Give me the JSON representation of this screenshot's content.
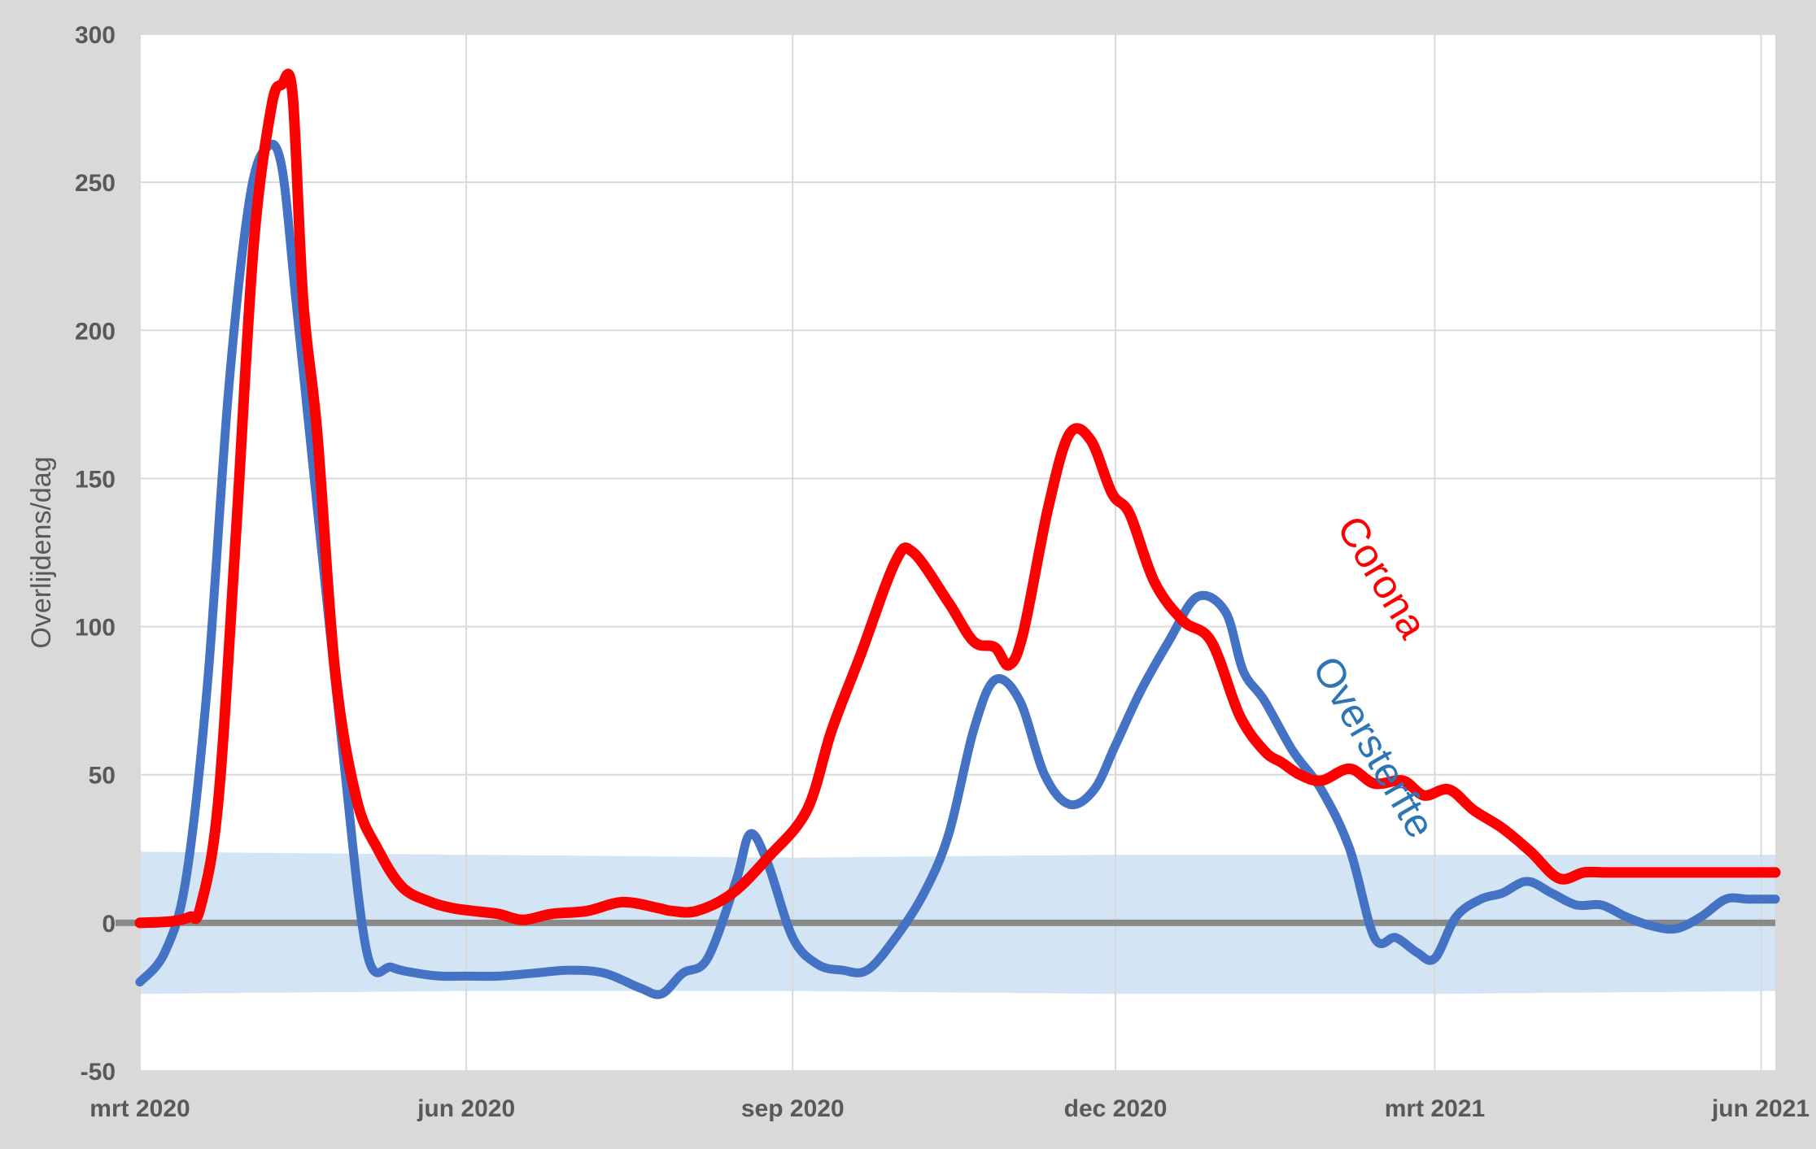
{
  "chart_data": {
    "type": "line",
    "ylabel": "Overlijdens/dag",
    "xlabel": "",
    "ylim": [
      -50,
      300
    ],
    "yticks": [
      300,
      250,
      200,
      150,
      100,
      50,
      0,
      -50
    ],
    "x_domain": [
      "2020-03-01",
      "2021-06-05"
    ],
    "xticks": [
      {
        "label": "mrt 2020",
        "date": "2020-03-01"
      },
      {
        "label": "jun 2020",
        "date": "2020-06-01"
      },
      {
        "label": "sep 2020",
        "date": "2020-09-01"
      },
      {
        "label": "dec 2020",
        "date": "2020-12-01"
      },
      {
        "label": "mrt 2021",
        "date": "2021-03-01"
      },
      {
        "label": "jun 2021",
        "date": "2021-06-01"
      }
    ],
    "grid": true,
    "band": {
      "color": "#d3e5f4",
      "x": [
        "2020-03-01",
        "2020-06-01",
        "2020-09-01",
        "2020-12-01",
        "2021-03-01",
        "2021-06-05"
      ],
      "upper": [
        24,
        23,
        22,
        23,
        23,
        23
      ],
      "lower": [
        -24,
        -23,
        -23,
        -24,
        -24,
        -23
      ]
    },
    "series": [
      {
        "name": "Corona",
        "color": "#ff0000",
        "x": [
          "2020-03-01",
          "2020-03-10",
          "2020-03-15",
          "2020-03-18",
          "2020-03-23",
          "2020-03-28",
          "2020-04-02",
          "2020-04-07",
          "2020-04-10",
          "2020-04-13",
          "2020-04-16",
          "2020-04-20",
          "2020-04-25",
          "2020-05-01",
          "2020-05-07",
          "2020-05-14",
          "2020-05-22",
          "2020-05-28",
          "2020-06-03",
          "2020-06-10",
          "2020-06-17",
          "2020-06-25",
          "2020-07-05",
          "2020-07-15",
          "2020-07-25",
          "2020-07-29",
          "2020-08-05",
          "2020-08-15",
          "2020-08-25",
          "2020-09-05",
          "2020-09-12",
          "2020-09-20",
          "2020-09-30",
          "2020-10-05",
          "2020-10-15",
          "2020-10-22",
          "2020-10-28",
          "2020-11-01",
          "2020-11-05",
          "2020-11-12",
          "2020-11-18",
          "2020-11-24",
          "2020-11-30",
          "2020-12-05",
          "2020-12-12",
          "2020-12-20",
          "2020-12-28",
          "2021-01-05",
          "2021-01-12",
          "2021-01-17",
          "2021-01-22",
          "2021-01-28",
          "2021-02-05",
          "2021-02-12",
          "2021-02-20",
          "2021-02-26",
          "2021-03-05",
          "2021-03-12",
          "2021-03-20",
          "2021-03-28",
          "2021-04-05",
          "2021-04-12",
          "2021-04-18",
          "2021-04-22",
          "2021-04-28",
          "2021-05-03",
          "2021-05-08",
          "2021-05-14",
          "2021-05-20",
          "2021-05-26",
          "2021-05-31",
          "2021-06-05"
        ],
        "y": [
          0,
          0.5,
          2,
          5,
          40,
          130,
          228,
          275,
          283,
          280,
          210,
          165,
          85,
          42,
          25,
          12,
          7,
          5,
          4,
          3,
          1,
          3,
          4,
          7,
          5,
          4,
          4,
          10,
          22,
          38,
          65,
          90,
          122,
          125,
          108,
          95,
          93,
          87,
          98,
          140,
          165,
          163,
          145,
          138,
          115,
          102,
          95,
          70,
          58,
          54,
          50,
          48,
          52,
          47,
          48,
          43,
          45,
          38,
          32,
          24,
          15,
          17,
          17,
          17,
          17,
          17,
          17,
          17,
          17,
          17,
          17,
          17
        ]
      },
      {
        "name": "Oversterfte",
        "color": "#4472c4",
        "x": [
          "2020-03-01",
          "2020-03-08",
          "2020-03-14",
          "2020-03-20",
          "2020-03-26",
          "2020-04-01",
          "2020-04-06",
          "2020-04-10",
          "2020-04-14",
          "2020-04-20",
          "2020-04-27",
          "2020-05-04",
          "2020-05-11",
          "2020-05-18",
          "2020-05-25",
          "2020-06-01",
          "2020-06-10",
          "2020-06-20",
          "2020-06-30",
          "2020-07-10",
          "2020-07-20",
          "2020-07-26",
          "2020-08-01",
          "2020-08-08",
          "2020-08-16",
          "2020-08-20",
          "2020-08-25",
          "2020-09-01",
          "2020-09-08",
          "2020-09-15",
          "2020-09-22",
          "2020-09-30",
          "2020-10-08",
          "2020-10-15",
          "2020-10-22",
          "2020-10-28",
          "2020-11-04",
          "2020-11-11",
          "2020-11-18",
          "2020-11-25",
          "2020-12-01",
          "2020-12-08",
          "2020-12-16",
          "2020-12-24",
          "2021-01-01",
          "2021-01-06",
          "2021-01-12",
          "2021-01-20",
          "2021-01-28",
          "2021-02-05",
          "2021-02-12",
          "2021-02-18",
          "2021-02-24",
          "2021-03-01",
          "2021-03-07",
          "2021-03-14",
          "2021-03-20",
          "2021-03-27",
          "2021-04-03",
          "2021-04-10",
          "2021-04-17",
          "2021-04-24",
          "2021-05-01",
          "2021-05-08",
          "2021-05-15",
          "2021-05-22",
          "2021-05-28",
          "2021-06-01",
          "2021-06-05"
        ],
        "y": [
          -20,
          -10,
          15,
          80,
          180,
          245,
          262,
          255,
          210,
          140,
          60,
          -10,
          -15,
          -17,
          -18,
          -18,
          -18,
          -17,
          -16,
          -17,
          -22,
          -24,
          -17,
          -12,
          14,
          30,
          20,
          -5,
          -14,
          -16,
          -16,
          -5,
          10,
          30,
          65,
          82,
          75,
          50,
          40,
          45,
          60,
          78,
          95,
          110,
          105,
          85,
          75,
          58,
          45,
          25,
          -5,
          -5,
          -10,
          -12,
          2,
          8,
          10,
          14,
          10,
          6,
          6,
          2,
          -1,
          -2,
          2,
          8,
          8,
          8,
          8
        ]
      }
    ],
    "annotations": [
      {
        "text": "Corona",
        "series": "Corona",
        "color": "#ff0000"
      },
      {
        "text": "Oversterfte",
        "series": "Oversterfte",
        "color": "#2e75b6"
      }
    ]
  }
}
